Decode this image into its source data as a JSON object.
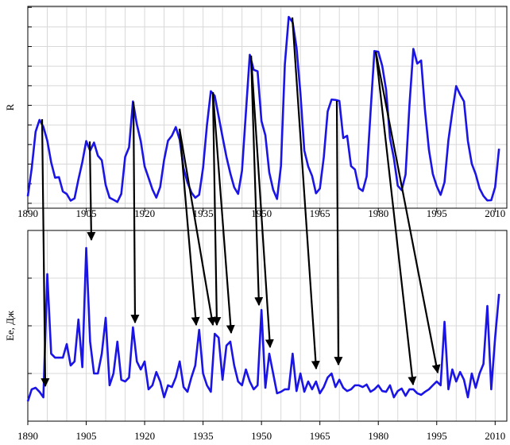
{
  "chart_data": [
    {
      "type": "line",
      "ylabel": "R",
      "color": "#1a14e6",
      "grid": true,
      "xlim": [
        1890,
        2013
      ],
      "xticks": [
        1890,
        1905,
        1920,
        1935,
        1950,
        1965,
        1980,
        1995,
        2010
      ],
      "ylim": [
        -5,
        201
      ],
      "yticks": [
        0,
        20,
        40,
        60,
        80,
        100,
        120,
        140,
        160,
        180,
        200
      ],
      "x": [
        1890,
        1891,
        1892,
        1893,
        1894,
        1895,
        1896,
        1897,
        1898,
        1899,
        1900,
        1901,
        1902,
        1903,
        1904,
        1905,
        1906,
        1907,
        1908,
        1909,
        1910,
        1911,
        1912,
        1913,
        1914,
        1915,
        1916,
        1917,
        1918,
        1919,
        1920,
        1921,
        1922,
        1923,
        1924,
        1925,
        1926,
        1927,
        1928,
        1929,
        1930,
        1931,
        1932,
        1933,
        1934,
        1935,
        1936,
        1937,
        1938,
        1939,
        1940,
        1941,
        1942,
        1943,
        1944,
        1945,
        1946,
        1947,
        1948,
        1949,
        1950,
        1951,
        1952,
        1953,
        1954,
        1955,
        1956,
        1957,
        1958,
        1959,
        1960,
        1961,
        1962,
        1963,
        1964,
        1965,
        1966,
        1967,
        1968,
        1969,
        1970,
        1971,
        1972,
        1973,
        1974,
        1975,
        1976,
        1977,
        1978,
        1979,
        1980,
        1981,
        1982,
        1983,
        1984,
        1985,
        1986,
        1987,
        1988,
        1989,
        1990,
        1991,
        1992,
        1993,
        1994,
        1995,
        1996,
        1997,
        1998,
        1999,
        2000,
        2001,
        2002,
        2003,
        2004,
        2005,
        2006,
        2007,
        2008,
        2009,
        2010,
        2011
      ],
      "values": [
        7.1,
        35.6,
        73.0,
        85.1,
        78.0,
        64.0,
        41.8,
        26.2,
        26.7,
        12.1,
        9.5,
        2.7,
        5.0,
        24.4,
        42.0,
        63.5,
        53.8,
        62.0,
        48.5,
        43.9,
        18.6,
        5.7,
        3.6,
        1.4,
        9.6,
        47.4,
        57.1,
        103.9,
        80.6,
        63.6,
        37.6,
        26.1,
        14.2,
        5.8,
        16.7,
        44.3,
        63.9,
        69.0,
        77.8,
        64.9,
        35.7,
        21.2,
        11.1,
        5.7,
        8.7,
        36.1,
        79.7,
        114.4,
        109.6,
        88.8,
        67.8,
        47.5,
        30.6,
        16.3,
        9.6,
        33.2,
        92.6,
        151.6,
        136.3,
        134.7,
        83.9,
        69.4,
        31.5,
        13.9,
        4.4,
        38.0,
        141.7,
        190.2,
        184.8,
        159.0,
        112.3,
        53.9,
        37.6,
        27.9,
        10.2,
        15.1,
        47.0,
        93.8,
        105.9,
        105.5,
        104.5,
        66.6,
        68.9,
        38.0,
        34.5,
        15.5,
        12.6,
        27.5,
        92.5,
        155.4,
        154.6,
        140.4,
        115.9,
        66.6,
        45.9,
        17.9,
        13.4,
        29.4,
        100.2,
        157.6,
        142.6,
        145.7,
        94.3,
        54.6,
        29.9,
        17.5,
        8.6,
        21.5,
        64.3,
        93.3,
        119.6,
        111.0,
        104.0,
        63.7,
        40.4,
        29.8,
        15.2,
        7.5,
        2.9,
        3.1,
        16.5,
        55.7
      ]
    },
    {
      "type": "line",
      "ylabel": "Ee, Дж",
      "color": "#1a14e6",
      "grid": true,
      "xlim": [
        1890,
        2013
      ],
      "xticks": [
        1890,
        1905,
        1920,
        1935,
        1950,
        1965,
        1980,
        1995,
        2010
      ],
      "ylim": [
        0,
        100
      ],
      "yticks": [
        0,
        25,
        50,
        75,
        100
      ],
      "x": [
        1890,
        1891,
        1892,
        1893,
        1894,
        1895,
        1896,
        1897,
        1898,
        1899,
        1900,
        1901,
        1902,
        1903,
        1904,
        1905,
        1906,
        1907,
        1908,
        1909,
        1910,
        1911,
        1912,
        1913,
        1914,
        1915,
        1916,
        1917,
        1918,
        1919,
        1920,
        1921,
        1922,
        1923,
        1924,
        1925,
        1926,
        1927,
        1928,
        1929,
        1930,
        1931,
        1932,
        1933,
        1934,
        1935,
        1936,
        1937,
        1938,
        1939,
        1940,
        1941,
        1942,
        1943,
        1944,
        1945,
        1946,
        1947,
        1948,
        1949,
        1950,
        1951,
        1952,
        1953,
        1954,
        1955,
        1956,
        1957,
        1958,
        1959,
        1960,
        1961,
        1962,
        1963,
        1964,
        1965,
        1966,
        1967,
        1968,
        1969,
        1970,
        1971,
        1972,
        1973,
        1974,
        1975,
        1976,
        1977,
        1978,
        1979,
        1980,
        1981,
        1982,
        1983,
        1984,
        1985,
        1986,
        1987,
        1988,
        1989,
        1990,
        1991,
        1992,
        1993,
        1994,
        1995,
        1996,
        1997,
        1998,
        1999,
        2000,
        2001,
        2002,
        2003,
        2004,
        2005,
        2006,
        2007,
        2008,
        2009,
        2010,
        2011
      ],
      "values": [
        10.4,
        16.7,
        17.5,
        15.4,
        12.5,
        77.1,
        35.4,
        33.3,
        33.3,
        33.3,
        40.4,
        29.2,
        31.3,
        53.3,
        28.3,
        90.8,
        41.7,
        25,
        25,
        35.4,
        54.2,
        18.8,
        25,
        41.7,
        21.7,
        20.8,
        22.9,
        49.2,
        31.3,
        27.1,
        31.3,
        16.7,
        18.8,
        25.8,
        20.8,
        12.5,
        18.8,
        17.9,
        22.9,
        31.3,
        17.9,
        15.4,
        22.9,
        29.2,
        47.9,
        25,
        18.8,
        15.4,
        45.8,
        43.8,
        21.7,
        39.6,
        41.7,
        29.2,
        20.8,
        18.8,
        27.1,
        20.8,
        16.7,
        18.8,
        58.3,
        17.5,
        35.4,
        25,
        14.6,
        15.4,
        16.7,
        16.7,
        35.4,
        15.8,
        25,
        15.4,
        20.8,
        16.7,
        20.8,
        14.6,
        17.9,
        22.9,
        25,
        17.9,
        21.7,
        17.5,
        15.8,
        16.7,
        18.8,
        18.8,
        17.9,
        19.2,
        15.4,
        16.7,
        18.8,
        15.8,
        15.4,
        18.8,
        12.5,
        15.8,
        17.1,
        13.3,
        16.7,
        16.7,
        14.6,
        13.8,
        15.4,
        16.7,
        18.8,
        20.8,
        18.8,
        52.1,
        16.7,
        27.1,
        20.8,
        25.8,
        21.7,
        12.5,
        25,
        17.5,
        25,
        30,
        60.4,
        16.7,
        43.8,
        66.7
      ]
    }
  ]
}
